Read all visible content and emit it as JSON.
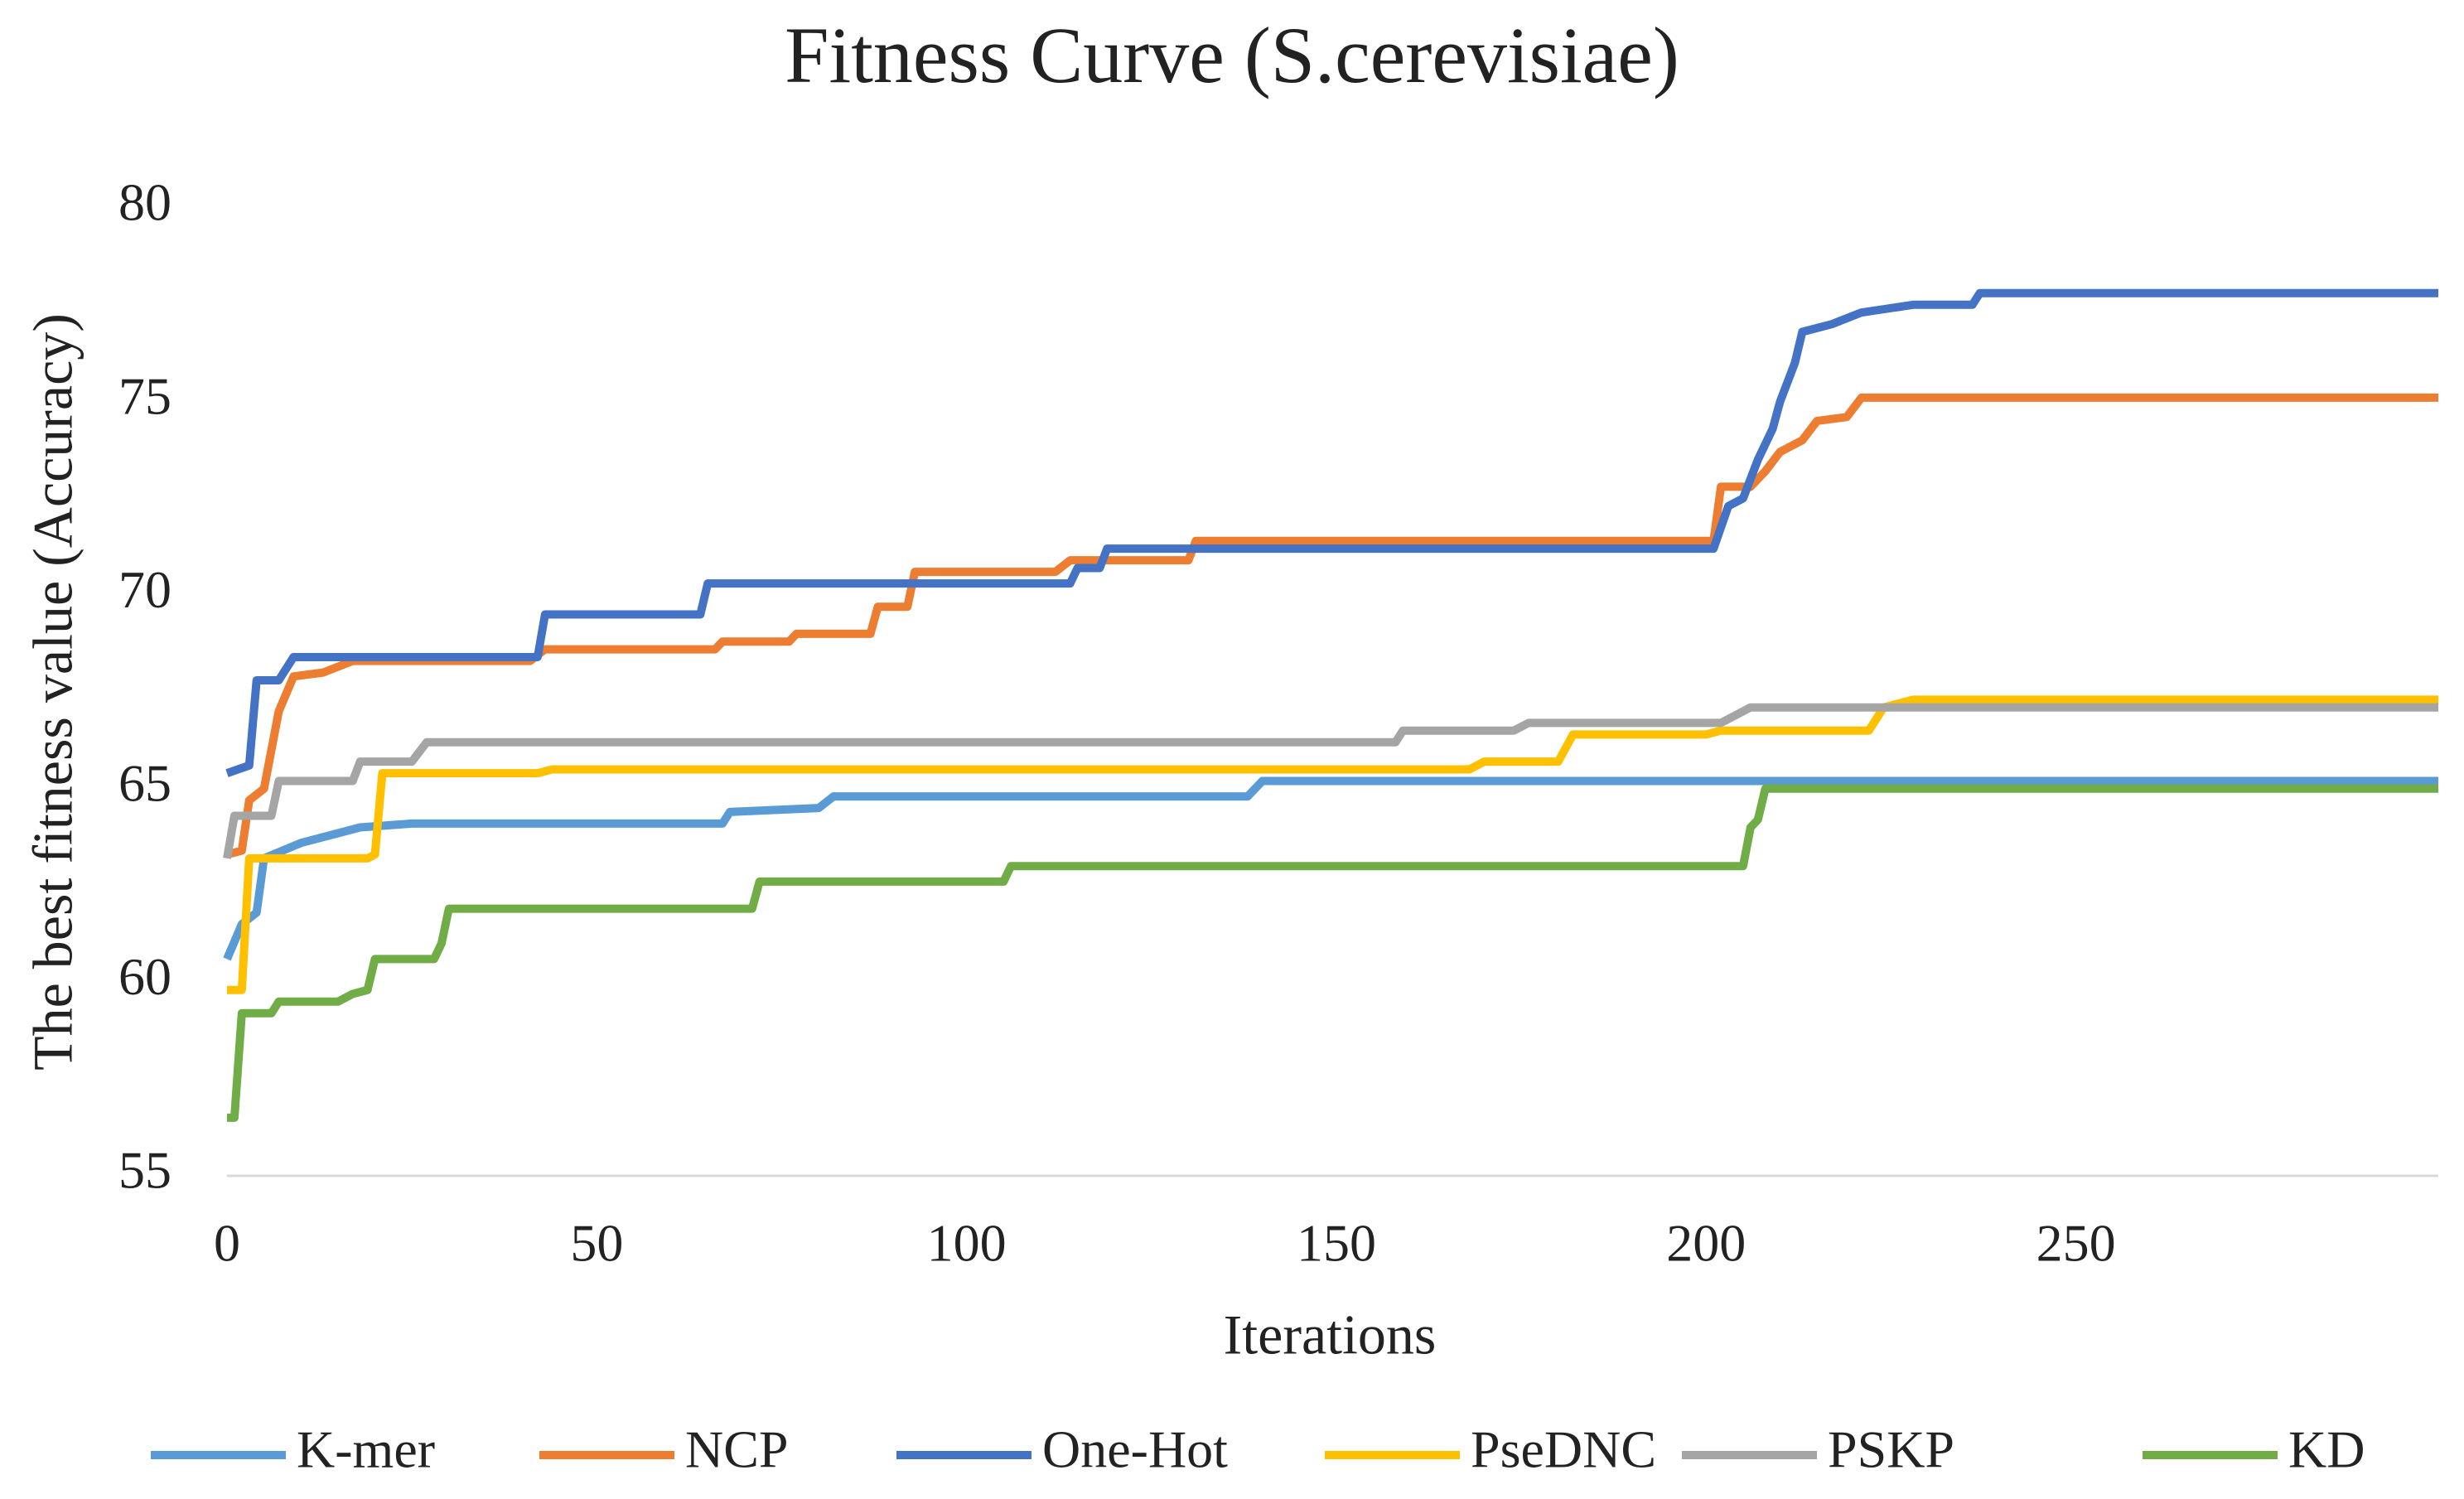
{
  "chart_data": {
    "type": "line",
    "title": "Fitness Curve (S.cerevisiae)",
    "x_label": "Iterations",
    "y_label": "The best fitness value (Accuracy)",
    "xlim": [
      0,
      299
    ],
    "xticks": [
      0,
      50,
      100,
      150,
      200,
      250
    ],
    "ylim": [
      55,
      80
    ],
    "yticks": [
      55,
      60,
      65,
      70,
      75,
      80
    ],
    "grid": false,
    "legend": "bottom",
    "series": [
      {
        "name": "K-mer",
        "color": "#5b9bd5",
        "x": [
          0,
          2,
          4,
          5,
          10,
          14,
          18,
          25,
          67,
          68,
          80,
          82,
          138,
          140,
          299
        ],
        "values": [
          60.6,
          61.5,
          61.8,
          63.2,
          63.6,
          63.8,
          64.0,
          64.1,
          64.1,
          64.4,
          64.5,
          64.8,
          64.8,
          65.2,
          65.2
        ]
      },
      {
        "name": "NCP",
        "color": "#ed7d31",
        "x": [
          0,
          2,
          3,
          5,
          7,
          9,
          13,
          17,
          41,
          43,
          66,
          67,
          76,
          77,
          87,
          88,
          92,
          93,
          112,
          114,
          130,
          131,
          201,
          202,
          206,
          208,
          210,
          213,
          215,
          219,
          221,
          299
        ],
        "values": [
          63.3,
          63.4,
          64.7,
          65.0,
          67.0,
          67.9,
          68.0,
          68.3,
          68.3,
          68.6,
          68.6,
          68.8,
          68.8,
          69.0,
          69.0,
          69.7,
          69.7,
          70.6,
          70.6,
          70.9,
          70.9,
          71.4,
          71.4,
          72.8,
          72.8,
          73.2,
          73.7,
          74.0,
          74.5,
          74.6,
          75.1,
          75.1
        ]
      },
      {
        "name": "One-Hot",
        "color": "#4472c4",
        "x": [
          0,
          3,
          4,
          7,
          9,
          42,
          43,
          64,
          65,
          114,
          115,
          118,
          119,
          201,
          203,
          205,
          207,
          209,
          210,
          211,
          212,
          213,
          217,
          221,
          228,
          236,
          237,
          299
        ],
        "values": [
          65.4,
          65.6,
          67.8,
          67.8,
          68.4,
          68.4,
          69.5,
          69.5,
          70.3,
          70.3,
          70.7,
          70.7,
          71.2,
          71.2,
          72.3,
          72.5,
          73.5,
          74.3,
          75.0,
          75.5,
          76.0,
          76.8,
          77.0,
          77.3,
          77.5,
          77.5,
          77.8,
          77.8
        ]
      },
      {
        "name": "PseDNC",
        "color": "#ffc000",
        "x": [
          0,
          2,
          3,
          19,
          20,
          21,
          42,
          44,
          168,
          170,
          180,
          182,
          200,
          202,
          222,
          224,
          228,
          299
        ],
        "values": [
          59.8,
          59.8,
          63.2,
          63.2,
          63.3,
          65.4,
          65.4,
          65.5,
          65.5,
          65.7,
          65.7,
          66.4,
          66.4,
          66.5,
          66.5,
          67.1,
          67.3,
          67.3
        ]
      },
      {
        "name": "PSKP",
        "color": "#a5a5a5",
        "x": [
          0,
          1,
          6,
          7,
          17,
          18,
          25,
          27,
          158,
          159,
          174,
          176,
          202,
          204,
          206,
          299
        ],
        "values": [
          63.2,
          64.3,
          64.3,
          65.2,
          65.2,
          65.7,
          65.7,
          66.2,
          66.2,
          66.5,
          66.5,
          66.7,
          66.7,
          66.9,
          67.1,
          67.1
        ]
      },
      {
        "name": "KD",
        "color": "#70ad47",
        "x": [
          0,
          1,
          2,
          6,
          7,
          15,
          17,
          19,
          20,
          28,
          29,
          30,
          71,
          72,
          105,
          106,
          205,
          206,
          207,
          208,
          299
        ],
        "values": [
          56.5,
          56.5,
          59.2,
          59.2,
          59.5,
          59.5,
          59.7,
          59.8,
          60.6,
          60.6,
          61.0,
          61.9,
          61.9,
          62.6,
          62.6,
          63.0,
          63.0,
          64.0,
          64.2,
          65.0,
          65.0
        ]
      }
    ]
  }
}
